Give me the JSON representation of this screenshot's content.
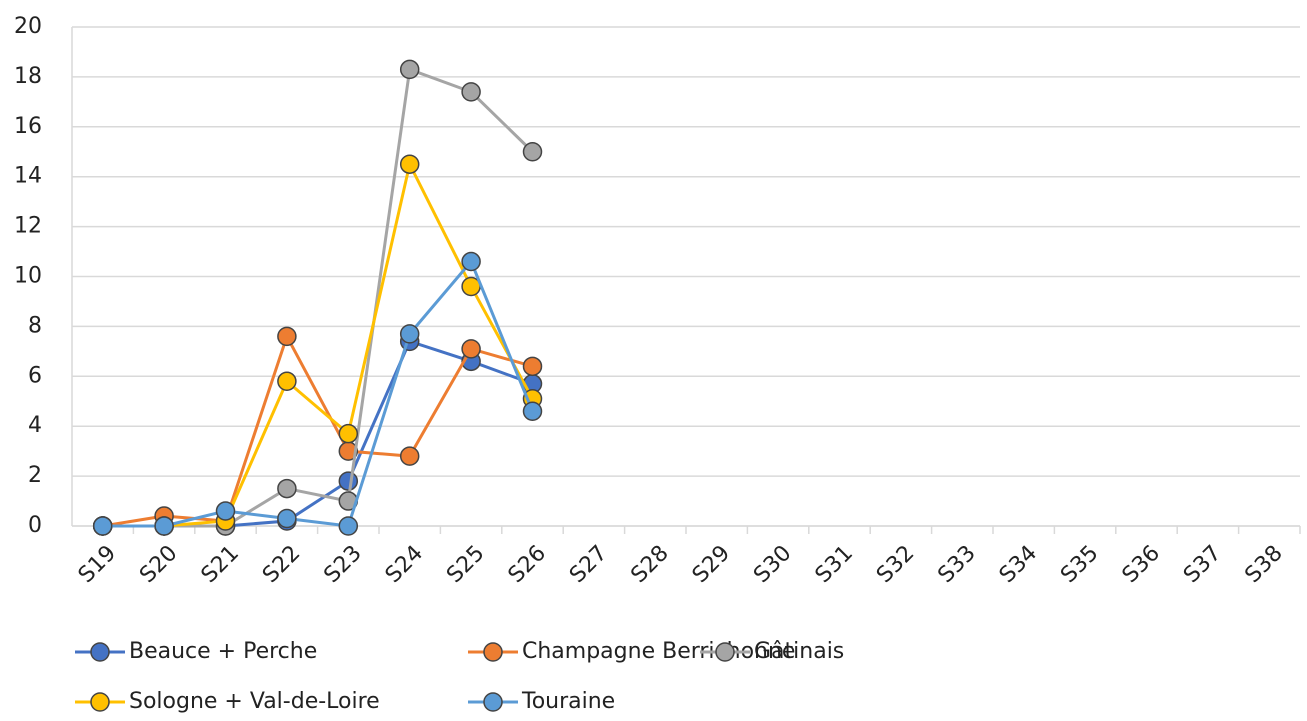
{
  "chart_data": {
    "type": "line",
    "categories": [
      "S19",
      "S20",
      "S21",
      "S22",
      "S23",
      "S24",
      "S25",
      "S26",
      "S27",
      "S28",
      "S29",
      "S30",
      "S31",
      "S32",
      "S33",
      "S34",
      "S35",
      "S36",
      "S37",
      "S38"
    ],
    "series": [
      {
        "name": "Beauce + Perche",
        "color": "#4472c4",
        "values": [
          0,
          0,
          0,
          0.2,
          1.8,
          7.4,
          6.6,
          5.7,
          null,
          null,
          null,
          null,
          null,
          null,
          null,
          null,
          null,
          null,
          null,
          null
        ]
      },
      {
        "name": "Champagne Berrichonne",
        "color": "#ed7d31",
        "values": [
          0,
          0.4,
          0.2,
          7.6,
          3.0,
          2.8,
          7.1,
          6.4,
          null,
          null,
          null,
          null,
          null,
          null,
          null,
          null,
          null,
          null,
          null,
          null
        ]
      },
      {
        "name": "Gâtinais",
        "color": "#a5a5a5",
        "values": [
          0,
          0,
          0,
          1.5,
          1.0,
          18.3,
          17.4,
          15.0,
          null,
          null,
          null,
          null,
          null,
          null,
          null,
          null,
          null,
          null,
          null,
          null
        ]
      },
      {
        "name": "Sologne + Val-de-Loire",
        "color": "#ffc000",
        "values": [
          0,
          0,
          0.2,
          5.8,
          3.7,
          14.5,
          9.6,
          5.1,
          null,
          null,
          null,
          null,
          null,
          null,
          null,
          null,
          null,
          null,
          null,
          null
        ]
      },
      {
        "name": "Touraine",
        "color": "#5b9bd5",
        "values": [
          0,
          0,
          0.6,
          0.3,
          0,
          7.7,
          10.6,
          4.6,
          null,
          null,
          null,
          null,
          null,
          null,
          null,
          null,
          null,
          null,
          null,
          null
        ]
      }
    ],
    "ylim": [
      0,
      20
    ],
    "yticks": [
      0,
      2,
      4,
      6,
      8,
      10,
      12,
      14,
      16,
      18,
      20
    ],
    "grid": true,
    "legend": "bottom"
  }
}
